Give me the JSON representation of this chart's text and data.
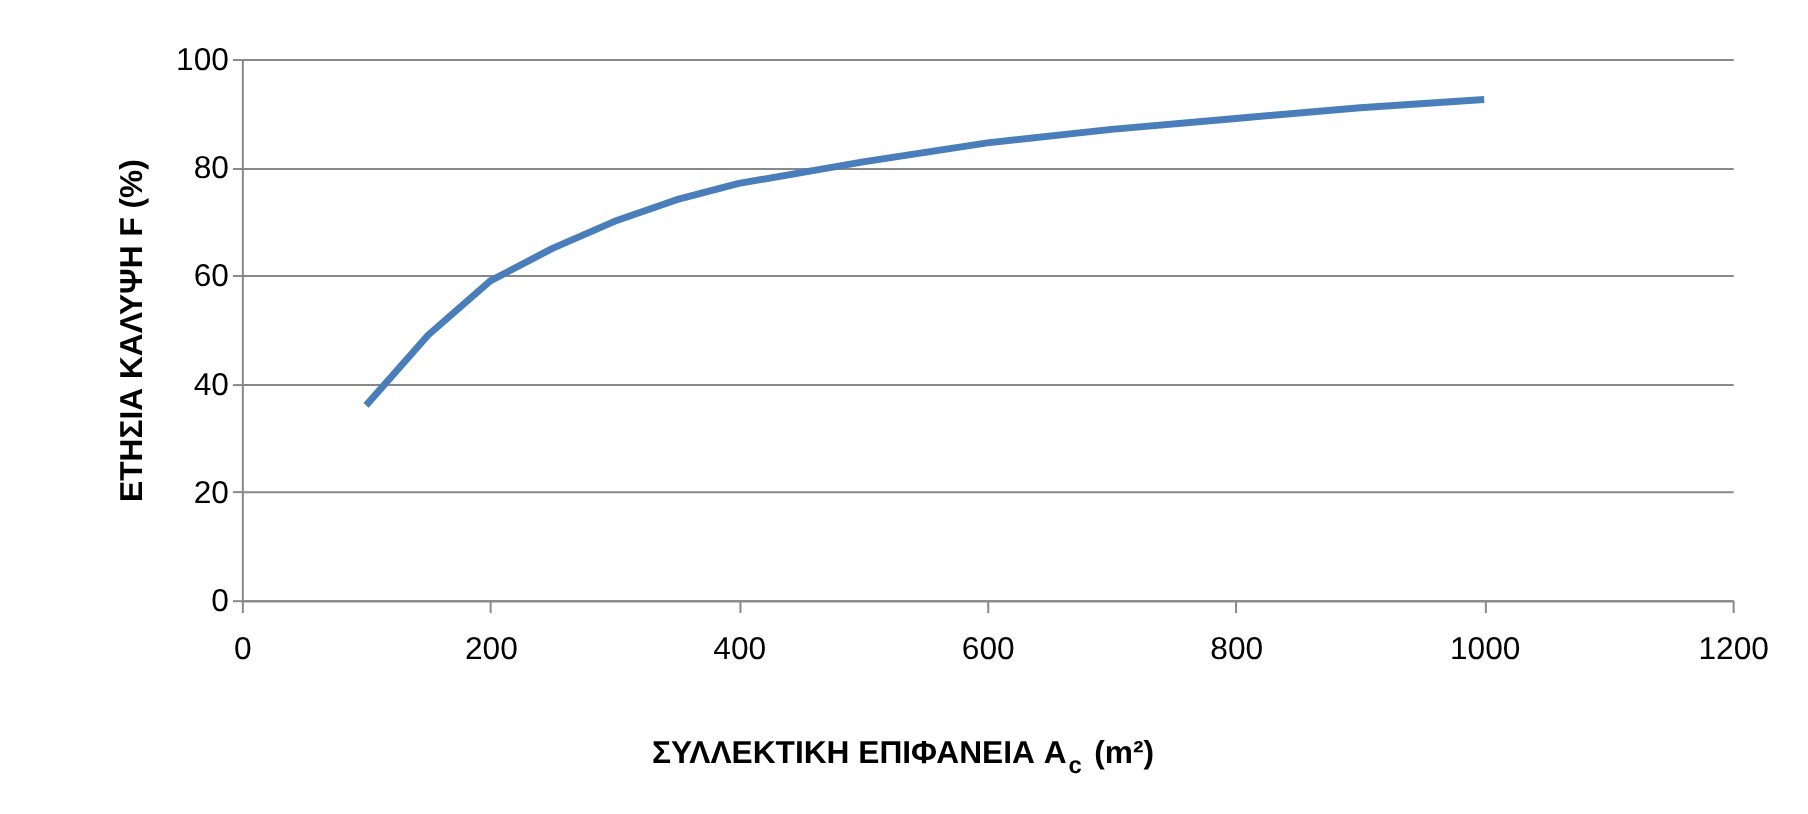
{
  "chart_data": {
    "type": "line",
    "xlabel": "ΣΥΛΛΕΚΤΙΚΗ ΕΠΙΦΑΝΕΙΑ A$_{c}$ (m²)",
    "ylabel": "ΕΤΗΣΙΑ ΚΑΛΥΨΗ F (%)",
    "x": [
      100,
      150,
      200,
      250,
      300,
      350,
      400,
      500,
      600,
      700,
      800,
      900,
      1000
    ],
    "series": [
      {
        "color": "#4a7ebb",
        "values": [
          36,
          49,
          59,
          65,
          70,
          74,
          77,
          81,
          84.5,
          87,
          89,
          91,
          92.5
        ]
      }
    ],
    "xlim": [
      0,
      1200
    ],
    "xticks": [
      0,
      200,
      400,
      600,
      800,
      1000,
      1200
    ],
    "ylim": [
      0,
      100
    ],
    "yticks": [
      0,
      20,
      40,
      60,
      80,
      100
    ],
    "grid": "y",
    "legend": false,
    "marker": "none",
    "line_style": "solid"
  }
}
